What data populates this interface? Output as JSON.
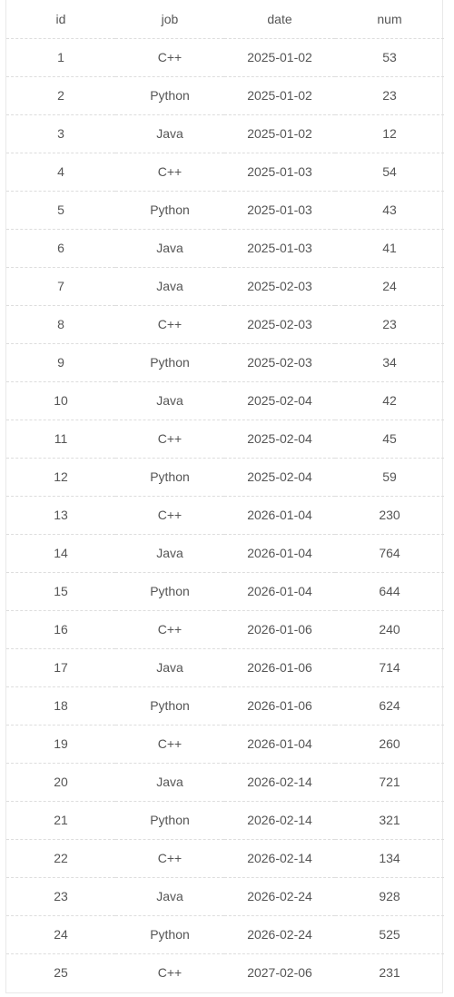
{
  "table": {
    "headers": [
      "id",
      "job",
      "date",
      "num"
    ],
    "rows": [
      [
        "1",
        "C++",
        "2025-01-02",
        "53"
      ],
      [
        "2",
        "Python",
        "2025-01-02",
        "23"
      ],
      [
        "3",
        "Java",
        "2025-01-02",
        "12"
      ],
      [
        "4",
        "C++",
        "2025-01-03",
        "54"
      ],
      [
        "5",
        "Python",
        "2025-01-03",
        "43"
      ],
      [
        "6",
        "Java",
        "2025-01-03",
        "41"
      ],
      [
        "7",
        "Java",
        "2025-02-03",
        "24"
      ],
      [
        "8",
        "C++",
        "2025-02-03",
        "23"
      ],
      [
        "9",
        "Python",
        "2025-02-03",
        "34"
      ],
      [
        "10",
        "Java",
        "2025-02-04",
        "42"
      ],
      [
        "11",
        "C++",
        "2025-02-04",
        "45"
      ],
      [
        "12",
        "Python",
        "2025-02-04",
        "59"
      ],
      [
        "13",
        "C++",
        "2026-01-04",
        "230"
      ],
      [
        "14",
        "Java",
        "2026-01-04",
        "764"
      ],
      [
        "15",
        "Python",
        "2026-01-04",
        "644"
      ],
      [
        "16",
        "C++",
        "2026-01-06",
        "240"
      ],
      [
        "17",
        "Java",
        "2026-01-06",
        "714"
      ],
      [
        "18",
        "Python",
        "2026-01-06",
        "624"
      ],
      [
        "19",
        "C++",
        "2026-01-04",
        "260"
      ],
      [
        "20",
        "Java",
        "2026-02-14",
        "721"
      ],
      [
        "21",
        "Python",
        "2026-02-14",
        "321"
      ],
      [
        "22",
        "C++",
        "2026-02-14",
        "134"
      ],
      [
        "23",
        "Java",
        "2026-02-24",
        "928"
      ],
      [
        "24",
        "Python",
        "2026-02-24",
        "525"
      ],
      [
        "25",
        "C++",
        "2027-02-06",
        "231"
      ]
    ]
  }
}
